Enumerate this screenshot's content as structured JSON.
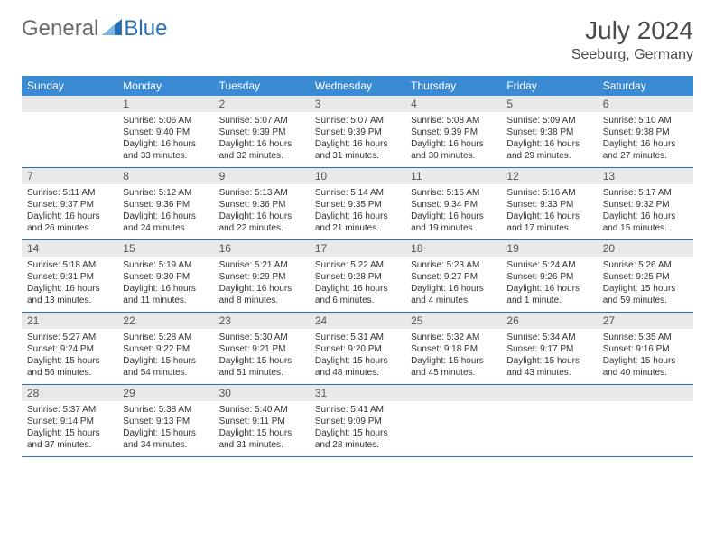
{
  "brand": {
    "general": "General",
    "blue": "Blue"
  },
  "title": "July 2024",
  "location": "Seeburg, Germany",
  "weekday_bg": "#3b8bd4",
  "weekday_fg": "#ffffff",
  "daynum_bg": "#e9e9e9",
  "row_border": "#2a6fb5",
  "weekdays": [
    "Sunday",
    "Monday",
    "Tuesday",
    "Wednesday",
    "Thursday",
    "Friday",
    "Saturday"
  ],
  "weeks": [
    [
      null,
      {
        "n": "1",
        "sr": "5:06 AM",
        "ss": "9:40 PM",
        "dl": "16 hours and 33 minutes."
      },
      {
        "n": "2",
        "sr": "5:07 AM",
        "ss": "9:39 PM",
        "dl": "16 hours and 32 minutes."
      },
      {
        "n": "3",
        "sr": "5:07 AM",
        "ss": "9:39 PM",
        "dl": "16 hours and 31 minutes."
      },
      {
        "n": "4",
        "sr": "5:08 AM",
        "ss": "9:39 PM",
        "dl": "16 hours and 30 minutes."
      },
      {
        "n": "5",
        "sr": "5:09 AM",
        "ss": "9:38 PM",
        "dl": "16 hours and 29 minutes."
      },
      {
        "n": "6",
        "sr": "5:10 AM",
        "ss": "9:38 PM",
        "dl": "16 hours and 27 minutes."
      }
    ],
    [
      {
        "n": "7",
        "sr": "5:11 AM",
        "ss": "9:37 PM",
        "dl": "16 hours and 26 minutes."
      },
      {
        "n": "8",
        "sr": "5:12 AM",
        "ss": "9:36 PM",
        "dl": "16 hours and 24 minutes."
      },
      {
        "n": "9",
        "sr": "5:13 AM",
        "ss": "9:36 PM",
        "dl": "16 hours and 22 minutes."
      },
      {
        "n": "10",
        "sr": "5:14 AM",
        "ss": "9:35 PM",
        "dl": "16 hours and 21 minutes."
      },
      {
        "n": "11",
        "sr": "5:15 AM",
        "ss": "9:34 PM",
        "dl": "16 hours and 19 minutes."
      },
      {
        "n": "12",
        "sr": "5:16 AM",
        "ss": "9:33 PM",
        "dl": "16 hours and 17 minutes."
      },
      {
        "n": "13",
        "sr": "5:17 AM",
        "ss": "9:32 PM",
        "dl": "16 hours and 15 minutes."
      }
    ],
    [
      {
        "n": "14",
        "sr": "5:18 AM",
        "ss": "9:31 PM",
        "dl": "16 hours and 13 minutes."
      },
      {
        "n": "15",
        "sr": "5:19 AM",
        "ss": "9:30 PM",
        "dl": "16 hours and 11 minutes."
      },
      {
        "n": "16",
        "sr": "5:21 AM",
        "ss": "9:29 PM",
        "dl": "16 hours and 8 minutes."
      },
      {
        "n": "17",
        "sr": "5:22 AM",
        "ss": "9:28 PM",
        "dl": "16 hours and 6 minutes."
      },
      {
        "n": "18",
        "sr": "5:23 AM",
        "ss": "9:27 PM",
        "dl": "16 hours and 4 minutes."
      },
      {
        "n": "19",
        "sr": "5:24 AM",
        "ss": "9:26 PM",
        "dl": "16 hours and 1 minute."
      },
      {
        "n": "20",
        "sr": "5:26 AM",
        "ss": "9:25 PM",
        "dl": "15 hours and 59 minutes."
      }
    ],
    [
      {
        "n": "21",
        "sr": "5:27 AM",
        "ss": "9:24 PM",
        "dl": "15 hours and 56 minutes."
      },
      {
        "n": "22",
        "sr": "5:28 AM",
        "ss": "9:22 PM",
        "dl": "15 hours and 54 minutes."
      },
      {
        "n": "23",
        "sr": "5:30 AM",
        "ss": "9:21 PM",
        "dl": "15 hours and 51 minutes."
      },
      {
        "n": "24",
        "sr": "5:31 AM",
        "ss": "9:20 PM",
        "dl": "15 hours and 48 minutes."
      },
      {
        "n": "25",
        "sr": "5:32 AM",
        "ss": "9:18 PM",
        "dl": "15 hours and 45 minutes."
      },
      {
        "n": "26",
        "sr": "5:34 AM",
        "ss": "9:17 PM",
        "dl": "15 hours and 43 minutes."
      },
      {
        "n": "27",
        "sr": "5:35 AM",
        "ss": "9:16 PM",
        "dl": "15 hours and 40 minutes."
      }
    ],
    [
      {
        "n": "28",
        "sr": "5:37 AM",
        "ss": "9:14 PM",
        "dl": "15 hours and 37 minutes."
      },
      {
        "n": "29",
        "sr": "5:38 AM",
        "ss": "9:13 PM",
        "dl": "15 hours and 34 minutes."
      },
      {
        "n": "30",
        "sr": "5:40 AM",
        "ss": "9:11 PM",
        "dl": "15 hours and 31 minutes."
      },
      {
        "n": "31",
        "sr": "5:41 AM",
        "ss": "9:09 PM",
        "dl": "15 hours and 28 minutes."
      },
      null,
      null,
      null
    ]
  ],
  "labels": {
    "sunrise": "Sunrise:",
    "sunset": "Sunset:",
    "daylight": "Daylight:"
  }
}
